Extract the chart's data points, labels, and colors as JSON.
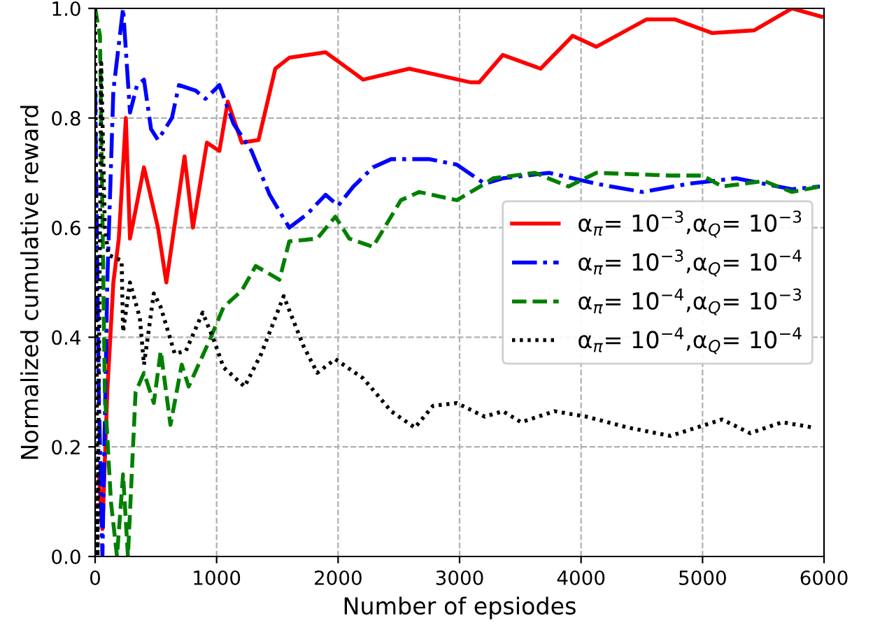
{
  "chart_data": {
    "type": "line",
    "xlabel": "Number of epsiodes",
    "ylabel": "Normalized cumulative reward",
    "xlim": [
      0,
      6000
    ],
    "xticks": [
      0,
      1000,
      2000,
      3000,
      4000,
      5000,
      6000
    ],
    "ylim": [
      0,
      1
    ],
    "yticks": [
      {
        "value": 0,
        "label": "0.0"
      },
      {
        "value": 0.2,
        "label": "0.2"
      },
      {
        "value": 0.4,
        "label": "0.4"
      },
      {
        "value": 0.6,
        "label": "0.6"
      },
      {
        "value": 0.8,
        "label": "0.8"
      },
      {
        "value": 1,
        "label": "1.0"
      }
    ],
    "grid": true,
    "legend": "center right",
    "series": [
      {
        "name": "α$_{π}$= 10$^{−3}$,α$_{Q}$= 10$^{−3}$",
        "color": "#ff0000",
        "line_style": "solid",
        "x": [
          30,
          60,
          100,
          150,
          195,
          253,
          287,
          402,
          517,
          586,
          736,
          805,
          920,
          1023,
          1092,
          1207,
          1345,
          1483,
          1598,
          1897,
          2207,
          2586,
          3092,
          3161,
          3356,
          3667,
          3931,
          4126,
          4540,
          4770,
          5080,
          5425,
          5736,
          5977
        ],
        "values": [
          0.15,
          0.05,
          0.3,
          0.5,
          0.58,
          0.8,
          0.58,
          0.71,
          0.6,
          0.5,
          0.73,
          0.6,
          0.755,
          0.74,
          0.83,
          0.755,
          0.76,
          0.89,
          0.91,
          0.92,
          0.87,
          0.89,
          0.865,
          0.865,
          0.915,
          0.89,
          0.95,
          0.93,
          0.98,
          0.98,
          0.955,
          0.96,
          1.0,
          0.985
        ]
      },
      {
        "name": "α$_{π}$= 10$^{−3}$,α$_{Q}$= 10$^{−4}$",
        "color": "#0000ff",
        "line_style": "dashdot",
        "x": [
          0,
          30,
          60,
          100,
          150,
          230,
          287,
          345,
          402,
          460,
          517,
          632,
          690,
          828,
          908,
          1023,
          1138,
          1287,
          1437,
          1598,
          1747,
          1897,
          2000,
          2126,
          2287,
          2437,
          2747,
          2977,
          3207,
          3356,
          3736,
          4126,
          4506,
          4885,
          5276,
          5736,
          5966
        ],
        "values": [
          0.85,
          0.3,
          0.0,
          0.5,
          0.85,
          1.0,
          0.81,
          0.86,
          0.87,
          0.78,
          0.76,
          0.8,
          0.86,
          0.85,
          0.835,
          0.86,
          0.79,
          0.74,
          0.66,
          0.6,
          0.625,
          0.66,
          0.64,
          0.675,
          0.71,
          0.725,
          0.725,
          0.715,
          0.68,
          0.69,
          0.7,
          0.68,
          0.665,
          0.68,
          0.69,
          0.67,
          0.675
        ]
      },
      {
        "name": "α$_{π}$= 10$^{−4}$,α$_{Q}$= 10$^{−3}$",
        "color": "#008000",
        "line_style": "dashed",
        "x": [
          0,
          40,
          80,
          130,
          180,
          230,
          270,
          333,
          402,
          483,
          540,
          620,
          713,
          770,
          943,
          1057,
          1207,
          1322,
          1517,
          1598,
          1828,
          1977,
          2092,
          2287,
          2517,
          2667,
          2977,
          3207,
          3276,
          3621,
          3897,
          4126,
          4736,
          5000,
          5161,
          5506,
          5736,
          5966
        ],
        "values": [
          1.0,
          0.95,
          0.3,
          0.1,
          0.0,
          0.15,
          0.0,
          0.3,
          0.335,
          0.28,
          0.375,
          0.24,
          0.35,
          0.31,
          0.395,
          0.455,
          0.485,
          0.53,
          0.505,
          0.575,
          0.58,
          0.62,
          0.58,
          0.565,
          0.65,
          0.665,
          0.65,
          0.68,
          0.69,
          0.7,
          0.675,
          0.7,
          0.695,
          0.695,
          0.675,
          0.685,
          0.665,
          0.675
        ]
      },
      {
        "name": "α$_{π}$= 10$^{−4}$,α$_{Q}$= 10$^{−4}$",
        "color": "#000000",
        "line_style": "dotted",
        "x": [
          0,
          20,
          50,
          80,
          110,
          218,
          230,
          287,
          368,
          402,
          483,
          540,
          655,
          747,
          885,
          977,
          1057,
          1230,
          1368,
          1552,
          1713,
          1828,
          1977,
          2207,
          2437,
          2632,
          2782,
          2977,
          3207,
          3356,
          3506,
          3782,
          4046,
          4391,
          4736,
          5161,
          5391,
          5655,
          5920
        ],
        "values": [
          1.0,
          0.0,
          0.9,
          0.6,
          0.55,
          0.54,
          0.41,
          0.5,
          0.435,
          0.35,
          0.48,
          0.455,
          0.37,
          0.375,
          0.445,
          0.395,
          0.345,
          0.31,
          0.37,
          0.475,
          0.385,
          0.335,
          0.36,
          0.325,
          0.265,
          0.235,
          0.275,
          0.28,
          0.255,
          0.265,
          0.245,
          0.265,
          0.255,
          0.235,
          0.22,
          0.25,
          0.225,
          0.245,
          0.235
        ]
      }
    ]
  }
}
